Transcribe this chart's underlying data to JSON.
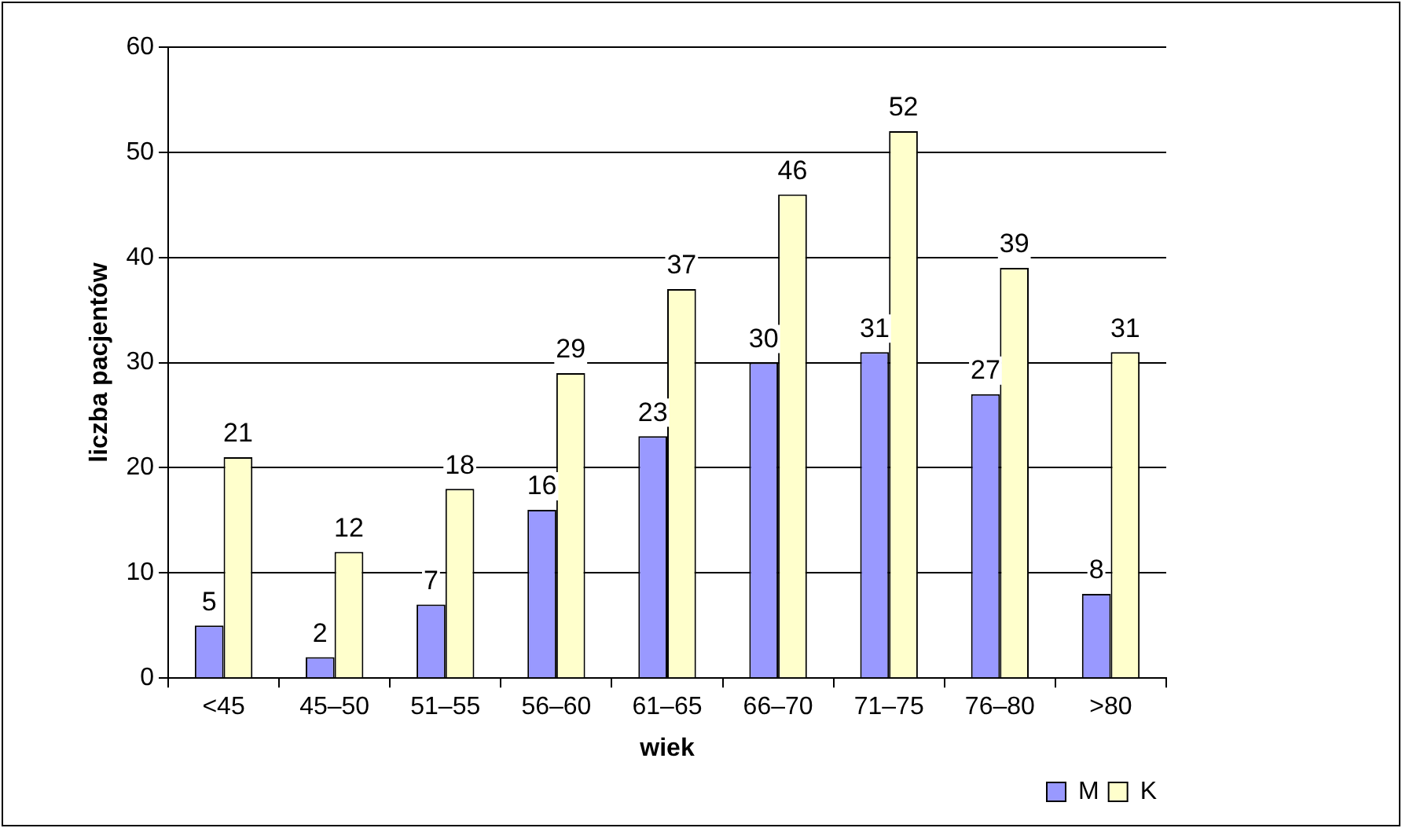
{
  "chart_data": {
    "type": "bar",
    "xlabel": "wiek",
    "ylabel": "liczba pacjentów",
    "categories": [
      "<45",
      "45–50",
      "51–55",
      "56–60",
      "61–65",
      "66–70",
      "71–75",
      "76–80",
      ">80"
    ],
    "series": [
      {
        "name": "M",
        "color": "#9999ff",
        "values": [
          5,
          2,
          7,
          16,
          23,
          30,
          31,
          27,
          8
        ]
      },
      {
        "name": "K",
        "color": "#ffffcc",
        "values": [
          21,
          12,
          18,
          29,
          37,
          46,
          52,
          39,
          31
        ]
      }
    ],
    "ylim": [
      0,
      60
    ],
    "yticks": [
      0,
      10,
      20,
      30,
      40,
      50,
      60
    ],
    "grid": "y",
    "legend": "bottom right",
    "data_labels": true
  }
}
